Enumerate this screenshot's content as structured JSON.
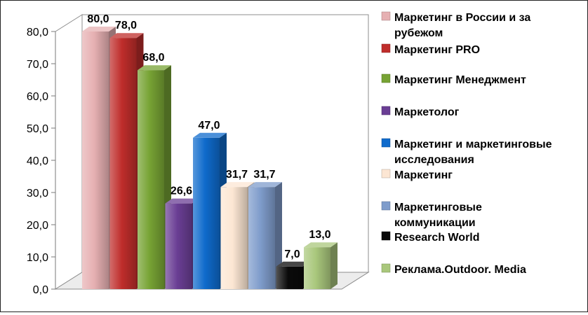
{
  "chart_data": {
    "type": "bar",
    "bar_style": "3d",
    "categories": [
      "Маркетинг в России и за рубежом",
      "Маркетинг PRO",
      "Маркетинг Менеджмент",
      "Маркетолог",
      "Маркетинг и маркетинговые исследования",
      "Маркетинг",
      "Маркетинговые коммуникации",
      "Research World",
      "Реклама.Outdoor. Media"
    ],
    "legend_lines": [
      [
        "Маркетинг в России и за",
        "рубежом"
      ],
      [
        "Маркетинг PRO"
      ],
      [
        "Маркетинг Менеджмент"
      ],
      [
        "Маркетолог"
      ],
      [
        "Маркетинг и маркетинговые",
        "исследования"
      ],
      [
        "Маркетинг"
      ],
      [
        "Маркетинговые",
        "коммуникации"
      ],
      [
        "Research World"
      ],
      [
        "Реклама.Outdoor. Media"
      ]
    ],
    "values": [
      80.0,
      78.0,
      68.0,
      26.6,
      47.0,
      31.7,
      31.7,
      7.0,
      13.0
    ],
    "value_labels": [
      "80,0",
      "78,0",
      "68,0",
      "26,6",
      "47,0",
      "31,7",
      "31,7",
      "7,0",
      "13,0"
    ],
    "colors": [
      "#e6b0b2",
      "#bf2d2b",
      "#77a334",
      "#6a3e94",
      "#0f6bcc",
      "#fce6d3",
      "#7f9ccb",
      "#0a0a0a",
      "#a9c77c"
    ],
    "ylim": [
      0,
      80
    ],
    "yticks": [
      0,
      10,
      20,
      30,
      40,
      50,
      60,
      70,
      80
    ],
    "ytick_labels": [
      "0,0",
      "10,0",
      "20,0",
      "30,0",
      "40,0",
      "50,0",
      "60,0",
      "70,0",
      "80,0"
    ],
    "grid": false,
    "legend_position": "right",
    "title": "",
    "xlabel": "",
    "ylabel": ""
  }
}
